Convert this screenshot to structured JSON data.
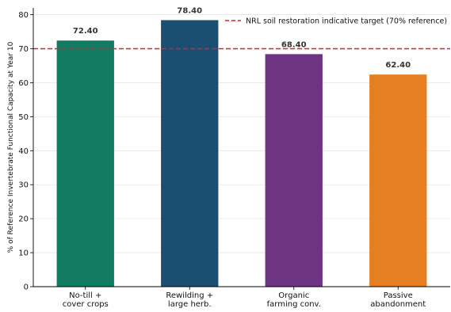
{
  "chart_data": {
    "type": "bar",
    "categories": [
      [
        "No-till +",
        "cover crops"
      ],
      [
        "Rewilding +",
        "large herb."
      ],
      [
        "Organic",
        "farming conv."
      ],
      [
        "Passive",
        "abandonment"
      ]
    ],
    "values": [
      72.4,
      78.4,
      68.4,
      62.4
    ],
    "value_labels": [
      "72.40",
      "78.40",
      "68.40",
      "62.40"
    ],
    "colors": [
      "#127c62",
      "#1b4f72",
      "#6c3483",
      "#e67e22"
    ],
    "ylabel": "% of Reference Invertebrate Functional Capacity at Year 10",
    "xlabel": "",
    "ylim": [
      0,
      82
    ],
    "yticks": [
      0,
      10,
      20,
      30,
      40,
      50,
      60,
      70,
      80
    ],
    "reference_line": {
      "value": 70,
      "label": "NRL soil restoration indicative target (70% reference)",
      "color": "#d62728",
      "style": "dashed"
    },
    "legend_position": "top-right",
    "grid": "horizontal, light"
  }
}
